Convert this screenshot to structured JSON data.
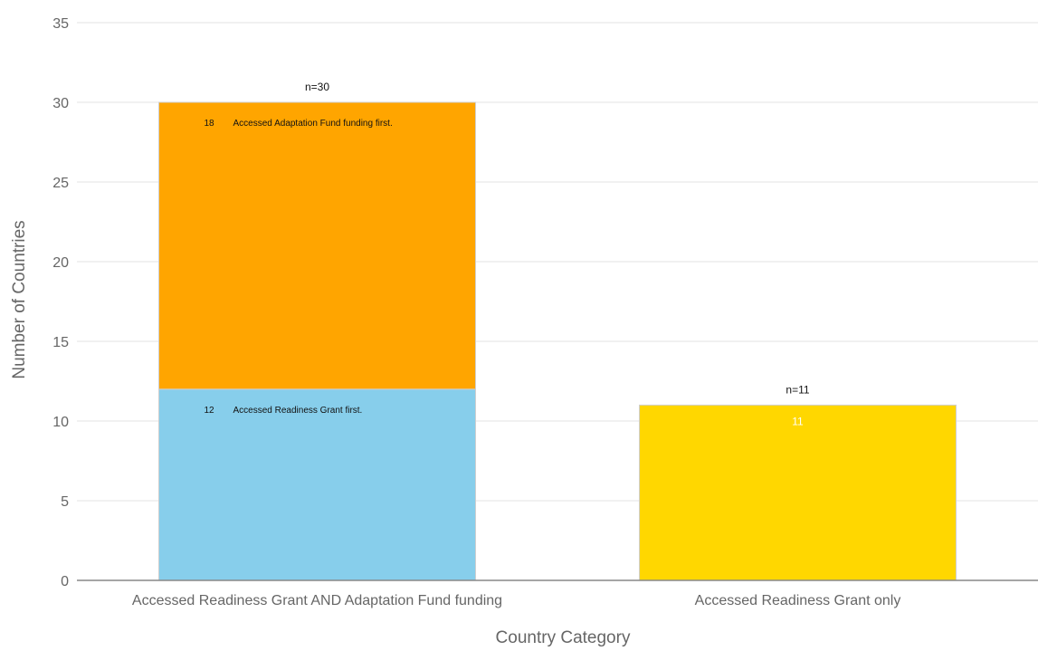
{
  "chart_data": {
    "type": "bar",
    "stacked": true,
    "xlabel": "Country Category",
    "ylabel": "Number of Countries",
    "ylim": [
      0,
      35
    ],
    "yticks": [
      0,
      5,
      10,
      15,
      20,
      25,
      30,
      35
    ],
    "grid": true,
    "categories": [
      "Accessed Readiness Grant AND Adaptation Fund funding",
      "Accessed Readiness Grant only"
    ],
    "bars": [
      {
        "category": "Accessed Readiness Grant AND Adaptation Fund funding",
        "total_label": "n=30",
        "segments": [
          {
            "value": 12,
            "value_label": "12",
            "label": "Accessed Readiness Grant first.",
            "color": "#87CEEB"
          },
          {
            "value": 18,
            "value_label": "18",
            "label": "Accessed Adaptation Fund funding first.",
            "color": "#FFA500"
          }
        ]
      },
      {
        "category": "Accessed Readiness Grant only",
        "total_label": "n=11",
        "segments": [
          {
            "value": 11,
            "value_label": "11",
            "label": "",
            "color": "#FFD700"
          }
        ]
      }
    ]
  }
}
